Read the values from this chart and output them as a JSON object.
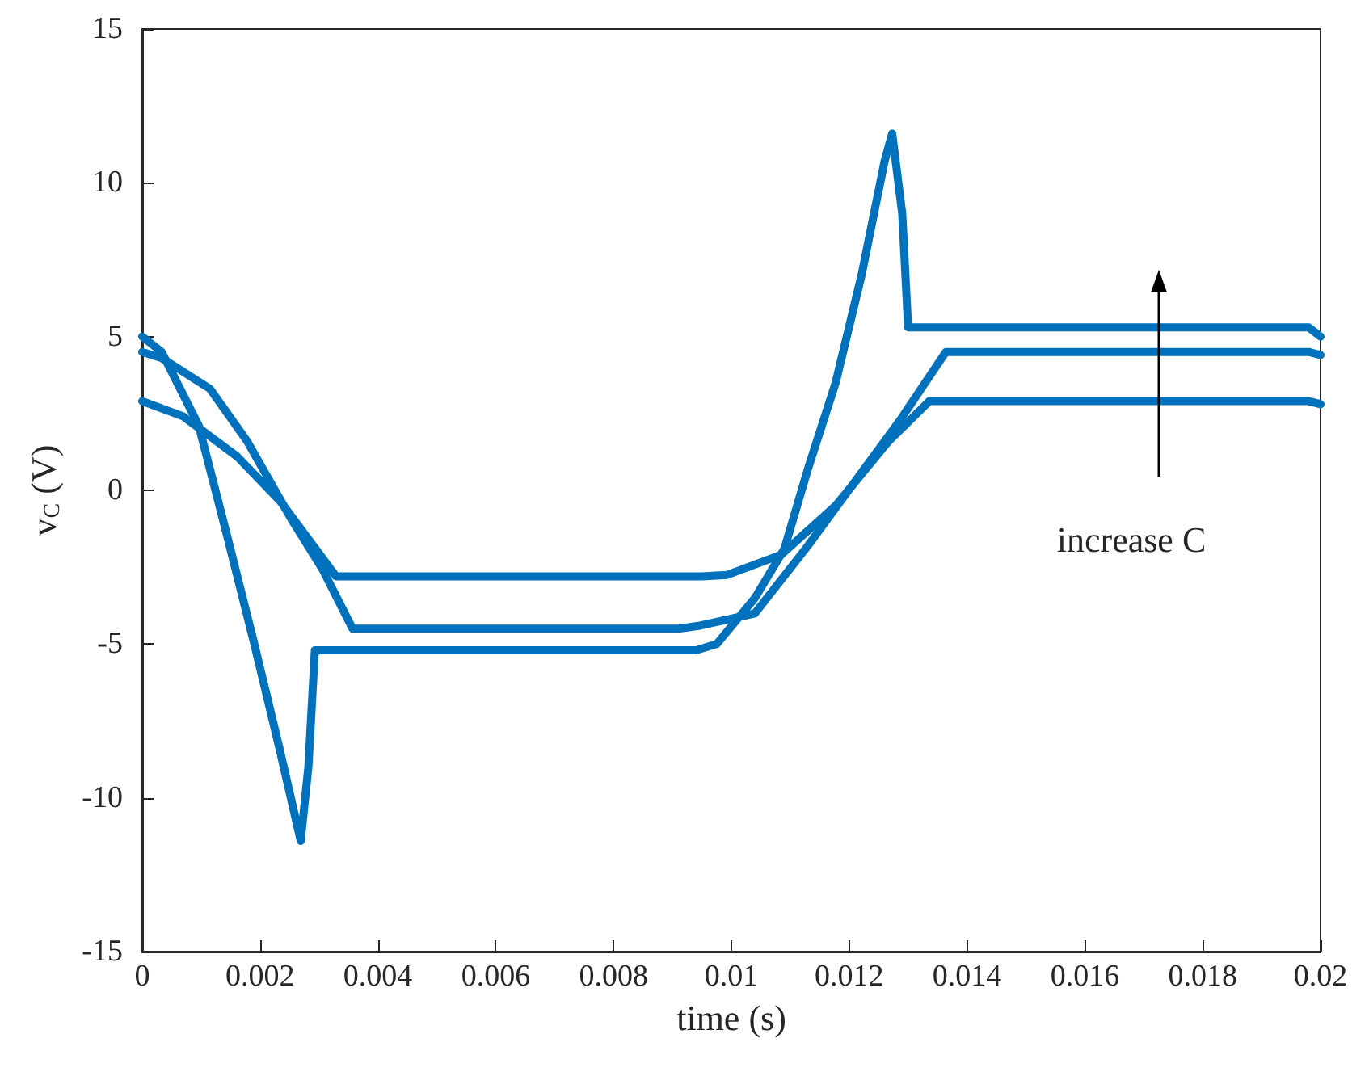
{
  "chart_data": {
    "type": "line",
    "xlabel": "time (s)",
    "ylabel": "v$_{C}$ (V)",
    "xlim": [
      0,
      0.02
    ],
    "ylim": [
      -15,
      15
    ],
    "xticks": [
      0,
      0.002,
      0.004,
      0.006,
      0.008,
      0.01,
      0.012,
      0.014,
      0.016,
      0.018,
      0.02
    ],
    "yticks": [
      -15,
      -10,
      -5,
      0,
      5,
      10,
      15
    ],
    "grid": false,
    "marker": "none",
    "line_style": "solid",
    "annotations": [
      "increase C"
    ],
    "series": [
      {
        "color": "#0072bd",
        "x": [
          0,
          0.00033,
          0.00096,
          0.00143,
          0.00189,
          0.00233,
          0.00269,
          0.00282,
          0.00293,
          0.0094,
          0.00975,
          0.0104,
          0.0109,
          0.0113,
          0.01177,
          0.01221,
          0.0126,
          0.01273,
          0.0129,
          0.013,
          0.0198,
          0.02
        ],
        "values": [
          5,
          4.5,
          2.1,
          -1.4,
          -4.9,
          -8.4,
          -11.4,
          -9,
          -5.2,
          -5.2,
          -5,
          -3.5,
          -1.9,
          0.7,
          3.5,
          7.0,
          10.7,
          11.6,
          9,
          5.3,
          5.3,
          5.0
        ]
      },
      {
        "color": "#0072bd",
        "x": [
          0,
          0.00033,
          0.00115,
          0.00178,
          0.00252,
          0.00307,
          0.00357,
          0.0091,
          0.00947,
          0.0104,
          0.0113,
          0.0122,
          0.01287,
          0.01364,
          0.0198,
          0.02
        ],
        "values": [
          4.5,
          4.3,
          3.3,
          1.6,
          -0.9,
          -2.6,
          -4.5,
          -4.5,
          -4.4,
          -4.0,
          -1.8,
          0.55,
          2.3,
          4.5,
          4.5,
          4.4
        ]
      },
      {
        "color": "#0072bd",
        "x": [
          0,
          0.0007,
          0.00161,
          0.00234,
          0.00329,
          0.0095,
          0.00993,
          0.01084,
          0.01177,
          0.01267,
          0.01336,
          0.0198,
          0.02
        ],
        "values": [
          2.9,
          2.4,
          1.1,
          -0.35,
          -2.8,
          -2.8,
          -2.75,
          -2.1,
          -0.5,
          1.6,
          2.9,
          2.9,
          2.8
        ]
      }
    ]
  }
}
